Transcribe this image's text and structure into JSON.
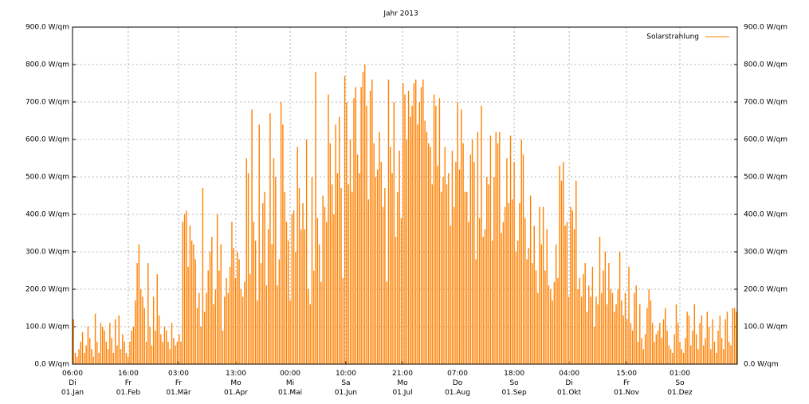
{
  "chart_data": {
    "type": "bar",
    "title": "Jahr 2013",
    "series": [
      {
        "name": "Solarstrahlung",
        "color": "#ff8000",
        "values": [
          120,
          30,
          20,
          40,
          60,
          85,
          30,
          50,
          100,
          70,
          40,
          20,
          135,
          60,
          30,
          110,
          100,
          90,
          60,
          40,
          110,
          70,
          30,
          120,
          50,
          130,
          40,
          80,
          60,
          30,
          20,
          60,
          90,
          100,
          170,
          270,
          320,
          200,
          180,
          150,
          60,
          270,
          100,
          50,
          180,
          90,
          240,
          130,
          80,
          60,
          100,
          90,
          60,
          40,
          110,
          70,
          50,
          60,
          80,
          60,
          380,
          400,
          410,
          260,
          370,
          330,
          320,
          280,
          150,
          190,
          100,
          470,
          140,
          190,
          250,
          300,
          340,
          160,
          200,
          400,
          250,
          320,
          90,
          180,
          230,
          190,
          260,
          380,
          310,
          230,
          300,
          280,
          200,
          180,
          220,
          550,
          510,
          240,
          680,
          380,
          330,
          170,
          640,
          270,
          430,
          460,
          210,
          360,
          670,
          320,
          550,
          500,
          210,
          280,
          700,
          640,
          460,
          380,
          330,
          170,
          400,
          410,
          300,
          580,
          470,
          360,
          430,
          360,
          600,
          200,
          160,
          500,
          250,
          780,
          390,
          320,
          220,
          450,
          420,
          380,
          720,
          590,
          480,
          400,
          640,
          510,
          660,
          470,
          230,
          770,
          700,
          480,
          600,
          460,
          710,
          740,
          560,
          510,
          740,
          780,
          800,
          690,
          440,
          730,
          760,
          590,
          500,
          520,
          620,
          540,
          420,
          470,
          220,
          760,
          580,
          510,
          700,
          340,
          460,
          570,
          390,
          750,
          720,
          600,
          730,
          660,
          690,
          750,
          760,
          640,
          700,
          740,
          760,
          650,
          620,
          590,
          580,
          480,
          720,
          690,
          530,
          710,
          460,
          500,
          580,
          480,
          510,
          370,
          570,
          420,
          540,
          700,
          520,
          680,
          590,
          460,
          460,
          380,
          560,
          600,
          540,
          280,
          620,
          390,
          690,
          340,
          360,
          500,
          480,
          610,
          330,
          500,
          620,
          590,
          620,
          350,
          380,
          420,
          550,
          430,
          610,
          440,
          540,
          300,
          330,
          430,
          600,
          560,
          390,
          280,
          310,
          450,
          270,
          370,
          250,
          190,
          420,
          320,
          420,
          250,
          360,
          210,
          200,
          170,
          220,
          320,
          230,
          530,
          490,
          540,
          370,
          380,
          180,
          420,
          410,
          360,
          490,
          200,
          230,
          180,
          240,
          270,
          140,
          210,
          180,
          260,
          100,
          180,
          160,
          340,
          190,
          250,
          300,
          160,
          270,
          200,
          190,
          140,
          160,
          200,
          300,
          170,
          130,
          190,
          120,
          260,
          110,
          90,
          190,
          210,
          60,
          160,
          70,
          40,
          80,
          150,
          200,
          170,
          110,
          60,
          80,
          90,
          110,
          70,
          120,
          150,
          90,
          50,
          40,
          30,
          80,
          160,
          110,
          60,
          40,
          30,
          70,
          140,
          130,
          50,
          90,
          160,
          80,
          40,
          110,
          130,
          50,
          70,
          140,
          100,
          40,
          120,
          60,
          30,
          90,
          130,
          70,
          40,
          120,
          140,
          60,
          50,
          150,
          150,
          140
        ]
      }
    ],
    "xlim": [
      0,
      365
    ],
    "xticks": [
      {
        "value": 0,
        "label": "06:00\nDi\n01.Jan"
      },
      {
        "value": 30.6,
        "label": "16:00\nFr\n01.Feb"
      },
      {
        "value": 58.2,
        "label": "03:00\nFr\n01.Mär"
      },
      {
        "value": 89.7,
        "label": "13:00\nMo\n01.Apr"
      },
      {
        "value": 119.5,
        "label": "00:00\nMi\n01.Mai"
      },
      {
        "value": 150.1,
        "label": "10:00\nSa\n01.Jun"
      },
      {
        "value": 181.2,
        "label": "21:00\nMo\n01.Jul"
      },
      {
        "value": 211.4,
        "label": "07:00\nDo\n01.Aug"
      },
      {
        "value": 242.5,
        "label": "18:00\nSo\n01.Sep"
      },
      {
        "value": 272.7,
        "label": "04:00\nDi\n01.Okt"
      },
      {
        "value": 304.2,
        "label": "15:00\nFr\n01.Nov"
      },
      {
        "value": 333.5,
        "label": "01:00\nSo\n01.Dez"
      }
    ],
    "ylim": [
      0,
      900
    ],
    "yticks": [
      {
        "value": 0,
        "label": "0.0 W/qm"
      },
      {
        "value": 100,
        "label": "100.0 W/qm"
      },
      {
        "value": 200,
        "label": "200.0 W/qm"
      },
      {
        "value": 300,
        "label": "300.0 W/qm"
      },
      {
        "value": 400,
        "label": "400.0 W/qm"
      },
      {
        "value": 500,
        "label": "500.0 W/qm"
      },
      {
        "value": 600,
        "label": "600.0 W/qm"
      },
      {
        "value": 700,
        "label": "700.0 W/qm"
      },
      {
        "value": 800,
        "label": "800.0 W/qm"
      },
      {
        "value": 900,
        "label": "900.0 W/qm"
      }
    ],
    "grid": true,
    "legend": "top-right"
  }
}
